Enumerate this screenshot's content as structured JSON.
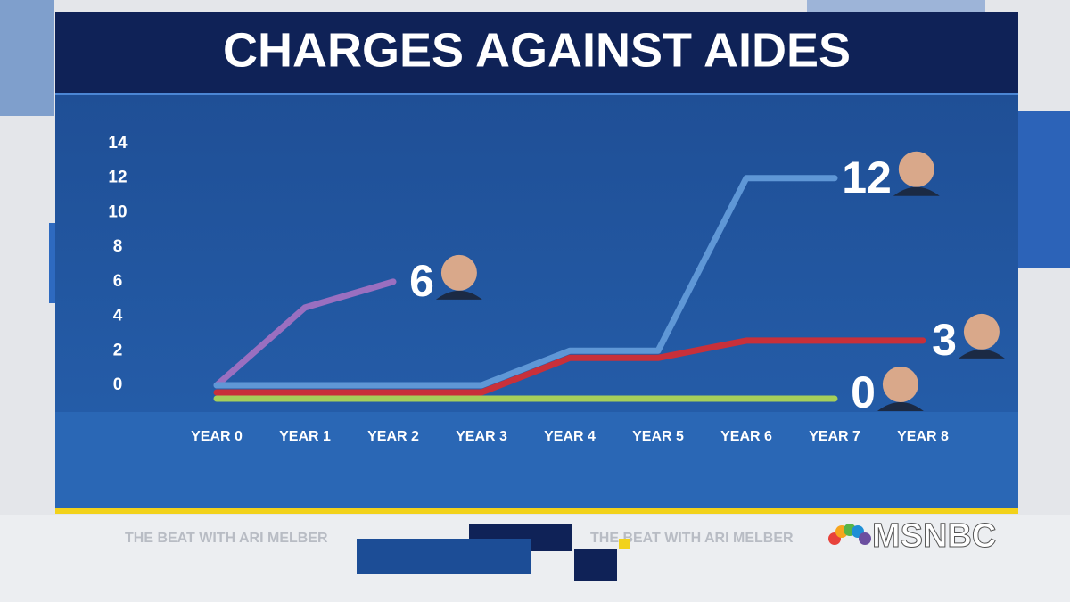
{
  "chart_data": {
    "type": "line",
    "title": "CHARGES AGAINST AIDES",
    "categories": [
      "YEAR 0",
      "YEAR 1",
      "YEAR 2",
      "YEAR 3",
      "YEAR 4",
      "YEAR 5",
      "YEAR 6",
      "YEAR 7",
      "YEAR 8"
    ],
    "series": [
      {
        "color": "#9a6fc0",
        "values": [
          0,
          4.5,
          6,
          null,
          null,
          null,
          null,
          null,
          null
        ]
      },
      {
        "color": "#5f97d6",
        "values": [
          0,
          0,
          0,
          0,
          2,
          2,
          12,
          12,
          null
        ]
      },
      {
        "color": "#c8303a",
        "values": [
          0,
          0,
          0,
          0,
          2,
          2,
          3,
          3,
          3
        ]
      },
      {
        "color": "#a5cf5a",
        "values": [
          0,
          0,
          0,
          0,
          0,
          0,
          0,
          0,
          null
        ]
      }
    ],
    "ylim": [
      0,
      14
    ],
    "yticks": [
      0,
      2,
      4,
      6,
      8,
      10,
      12,
      14
    ]
  },
  "ticker": "THE BEAT WITH ARI MELBER",
  "logo": "MSNBC"
}
